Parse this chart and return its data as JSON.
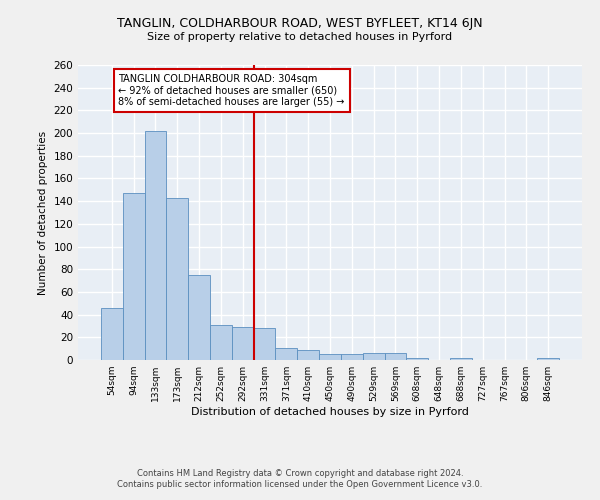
{
  "title1": "TANGLIN, COLDHARBOUR ROAD, WEST BYFLEET, KT14 6JN",
  "title2": "Size of property relative to detached houses in Pyrford",
  "xlabel": "Distribution of detached houses by size in Pyrford",
  "ylabel": "Number of detached properties",
  "footer1": "Contains HM Land Registry data © Crown copyright and database right 2024.",
  "footer2": "Contains public sector information licensed under the Open Government Licence v3.0.",
  "annotation_line1": "TANGLIN COLDHARBOUR ROAD: 304sqm",
  "annotation_line2": "← 92% of detached houses are smaller (650)",
  "annotation_line3": "8% of semi-detached houses are larger (55) →",
  "bar_labels": [
    "54sqm",
    "94sqm",
    "133sqm",
    "173sqm",
    "212sqm",
    "252sqm",
    "292sqm",
    "331sqm",
    "371sqm",
    "410sqm",
    "450sqm",
    "490sqm",
    "529sqm",
    "569sqm",
    "608sqm",
    "648sqm",
    "688sqm",
    "727sqm",
    "767sqm",
    "806sqm",
    "846sqm"
  ],
  "bar_values": [
    46,
    147,
    202,
    143,
    75,
    31,
    29,
    28,
    11,
    9,
    5,
    5,
    6,
    6,
    2,
    0,
    2,
    0,
    0,
    0,
    2
  ],
  "bar_color": "#b8cfe8",
  "bar_edge_color": "#5a8fc0",
  "reference_line_x": 6.5,
  "reference_line_color": "#cc0000",
  "annotation_box_color": "#cc0000",
  "fig_facecolor": "#f0f0f0",
  "background_color": "#e8eef5",
  "grid_color": "#ffffff",
  "ylim": [
    0,
    260
  ],
  "yticks": [
    0,
    20,
    40,
    60,
    80,
    100,
    120,
    140,
    160,
    180,
    200,
    220,
    240,
    260
  ]
}
